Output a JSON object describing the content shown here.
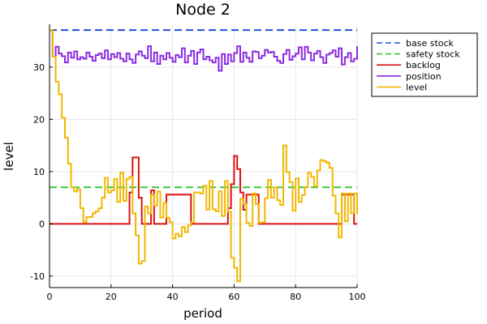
{
  "chart_data": {
    "type": "line",
    "title": "Node 2",
    "xlabel": "period",
    "ylabel": "level",
    "xlim": [
      0,
      100
    ],
    "ylim": [
      -12.2,
      38.2
    ],
    "xticks": [
      0,
      20,
      40,
      60,
      80,
      100
    ],
    "yticks": [
      -10,
      0,
      10,
      20,
      30
    ],
    "grid": true,
    "legend_position": "top-right (outside plot)",
    "series": [
      {
        "name": "base stock",
        "color": "#1f4fd6",
        "style": "dashed",
        "x": [
          0,
          100
        ],
        "y": [
          37.1,
          37.1
        ]
      },
      {
        "name": "safety stock",
        "color": "#33cc33",
        "style": "dashed",
        "x": [
          0,
          100
        ],
        "y": [
          7.0,
          7.0
        ]
      },
      {
        "name": "backlog",
        "color": "#dd1111",
        "style": "step",
        "x": [
          0,
          1,
          2,
          3,
          4,
          5,
          6,
          7,
          8,
          9,
          10,
          11,
          12,
          13,
          14,
          15,
          16,
          17,
          18,
          19,
          20,
          21,
          22,
          23,
          24,
          25,
          26,
          27,
          28,
          29,
          30,
          31,
          32,
          33,
          34,
          35,
          36,
          37,
          38,
          39,
          40,
          41,
          42,
          43,
          44,
          45,
          46,
          47,
          48,
          49,
          50,
          51,
          52,
          53,
          54,
          55,
          56,
          57,
          58,
          59,
          60,
          61,
          62,
          63,
          64,
          65,
          66,
          67,
          68,
          69,
          70,
          71,
          72,
          73,
          74,
          75,
          76,
          77,
          78,
          79,
          80,
          81,
          82,
          83,
          84,
          85,
          86,
          87,
          88,
          89,
          90,
          91,
          92,
          93,
          94,
          95,
          96,
          97,
          98,
          99,
          100
        ],
        "y": [
          0,
          0,
          0,
          0,
          0,
          0,
          0,
          0,
          0,
          0,
          0,
          0,
          0,
          0,
          0,
          0,
          0,
          0,
          0,
          0,
          0,
          0,
          0,
          0,
          0,
          0,
          6.0,
          12.7,
          12.7,
          5.0,
          0,
          0,
          0,
          6.4,
          0,
          0,
          0,
          0,
          5.6,
          5.6,
          5.6,
          5.6,
          5.6,
          5.6,
          5.6,
          5.6,
          0,
          0,
          0,
          0,
          0,
          0,
          0,
          0,
          0,
          0,
          0,
          0,
          3.0,
          7.6,
          13.0,
          10.5,
          6.0,
          2.7,
          5.6,
          5.6,
          5.6,
          5.6,
          0,
          0,
          0,
          0,
          0,
          0,
          0,
          0,
          0,
          0,
          0,
          0,
          0,
          0,
          0,
          0,
          0,
          0,
          0,
          0,
          0,
          0,
          0,
          0,
          0,
          0,
          0,
          5.6,
          5.6,
          5.6,
          5.6,
          0,
          0
        ]
      },
      {
        "name": "position",
        "color": "#8a2be2",
        "style": "step",
        "x": [
          0,
          1,
          2,
          3,
          4,
          5,
          6,
          7,
          8,
          9,
          10,
          11,
          12,
          13,
          14,
          15,
          16,
          17,
          18,
          19,
          20,
          21,
          22,
          23,
          24,
          25,
          26,
          27,
          28,
          29,
          30,
          31,
          32,
          33,
          34,
          35,
          36,
          37,
          38,
          39,
          40,
          41,
          42,
          43,
          44,
          45,
          46,
          47,
          48,
          49,
          50,
          51,
          52,
          53,
          54,
          55,
          56,
          57,
          58,
          59,
          60,
          61,
          62,
          63,
          64,
          65,
          66,
          67,
          68,
          69,
          70,
          71,
          72,
          73,
          74,
          75,
          76,
          77,
          78,
          79,
          80,
          81,
          82,
          83,
          84,
          85,
          86,
          87,
          88,
          89,
          90,
          91,
          92,
          93,
          94,
          95,
          96,
          97,
          98,
          99,
          100
        ],
        "y": [
          37.1,
          32.0,
          33.9,
          32.6,
          32.1,
          30.9,
          32.8,
          31.8,
          33.0,
          31.5,
          31.9,
          31.6,
          32.8,
          32.0,
          31.2,
          32.3,
          32.6,
          31.7,
          33.2,
          31.5,
          32.5,
          31.9,
          32.7,
          31.6,
          31.1,
          32.6,
          31.5,
          30.8,
          32.4,
          33.0,
          32.2,
          31.7,
          34.0,
          31.1,
          32.8,
          30.6,
          32.2,
          31.5,
          32.7,
          31.8,
          31.0,
          32.3,
          31.9,
          33.6,
          30.9,
          32.2,
          33.1,
          30.6,
          32.8,
          33.4,
          31.5,
          32.0,
          31.3,
          30.9,
          31.8,
          29.3,
          32.5,
          30.6,
          32.4,
          31.1,
          32.7,
          34.0,
          31.0,
          32.8,
          31.8,
          31.0,
          33.0,
          32.9,
          31.7,
          32.2,
          33.3,
          32.8,
          32.9,
          32.0,
          31.2,
          30.8,
          32.5,
          33.3,
          31.4,
          32.1,
          32.6,
          33.8,
          31.5,
          33.9,
          32.8,
          31.3,
          32.6,
          33.1,
          31.9,
          30.8,
          32.4,
          32.7,
          33.2,
          32.0,
          33.6,
          30.5,
          31.9,
          32.7,
          31.1,
          31.6,
          34.0
        ]
      },
      {
        "name": "level",
        "color": "#f0b800",
        "style": "step",
        "x": [
          0,
          1,
          2,
          3,
          4,
          5,
          6,
          7,
          8,
          9,
          10,
          11,
          12,
          13,
          14,
          15,
          16,
          17,
          18,
          19,
          20,
          21,
          22,
          23,
          24,
          25,
          26,
          27,
          28,
          29,
          30,
          31,
          32,
          33,
          34,
          35,
          36,
          37,
          38,
          39,
          40,
          41,
          42,
          43,
          44,
          45,
          46,
          47,
          48,
          49,
          50,
          51,
          52,
          53,
          54,
          55,
          56,
          57,
          58,
          59,
          60,
          61,
          62,
          63,
          64,
          65,
          66,
          67,
          68,
          69,
          70,
          71,
          72,
          73,
          74,
          75,
          76,
          77,
          78,
          79,
          80,
          81,
          82,
          83,
          84,
          85,
          86,
          87,
          88,
          89,
          90,
          91,
          92,
          93,
          94,
          95,
          96,
          97,
          98,
          99,
          100
        ],
        "y": [
          37.1,
          32.0,
          27.2,
          24.8,
          20.3,
          16.5,
          11.5,
          7.0,
          6.2,
          6.6,
          3.0,
          0.3,
          1.3,
          1.3,
          2.0,
          2.4,
          3.0,
          5.0,
          8.8,
          6.0,
          6.4,
          8.6,
          4.2,
          9.8,
          4.4,
          8.6,
          9.0,
          2.0,
          -2.2,
          -7.6,
          -7.1,
          3.3,
          2.0,
          5.6,
          3.5,
          6.2,
          1.2,
          4.0,
          1.2,
          0.3,
          -2.8,
          -1.9,
          -2.4,
          -0.6,
          -1.6,
          -0.3,
          0.3,
          6.0,
          6.0,
          5.8,
          7.3,
          2.7,
          8.2,
          2.8,
          2.4,
          6.2,
          1.5,
          8.2,
          2.3,
          -6.5,
          -8.4,
          -11.0,
          4.8,
          3.8,
          0.2,
          -0.4,
          5.8,
          3.8,
          0.2,
          0.3,
          4.9,
          8.4,
          5.0,
          7.0,
          4.5,
          3.6,
          15.0,
          9.9,
          8.0,
          2.5,
          8.7,
          4.2,
          5.5,
          7.0,
          9.8,
          9.0,
          7.2,
          10.2,
          12.2,
          12.0,
          11.7,
          10.7,
          5.4,
          2.0,
          -2.6,
          5.8,
          0.5,
          5.8,
          2.0,
          5.8,
          1.9
        ]
      }
    ]
  }
}
